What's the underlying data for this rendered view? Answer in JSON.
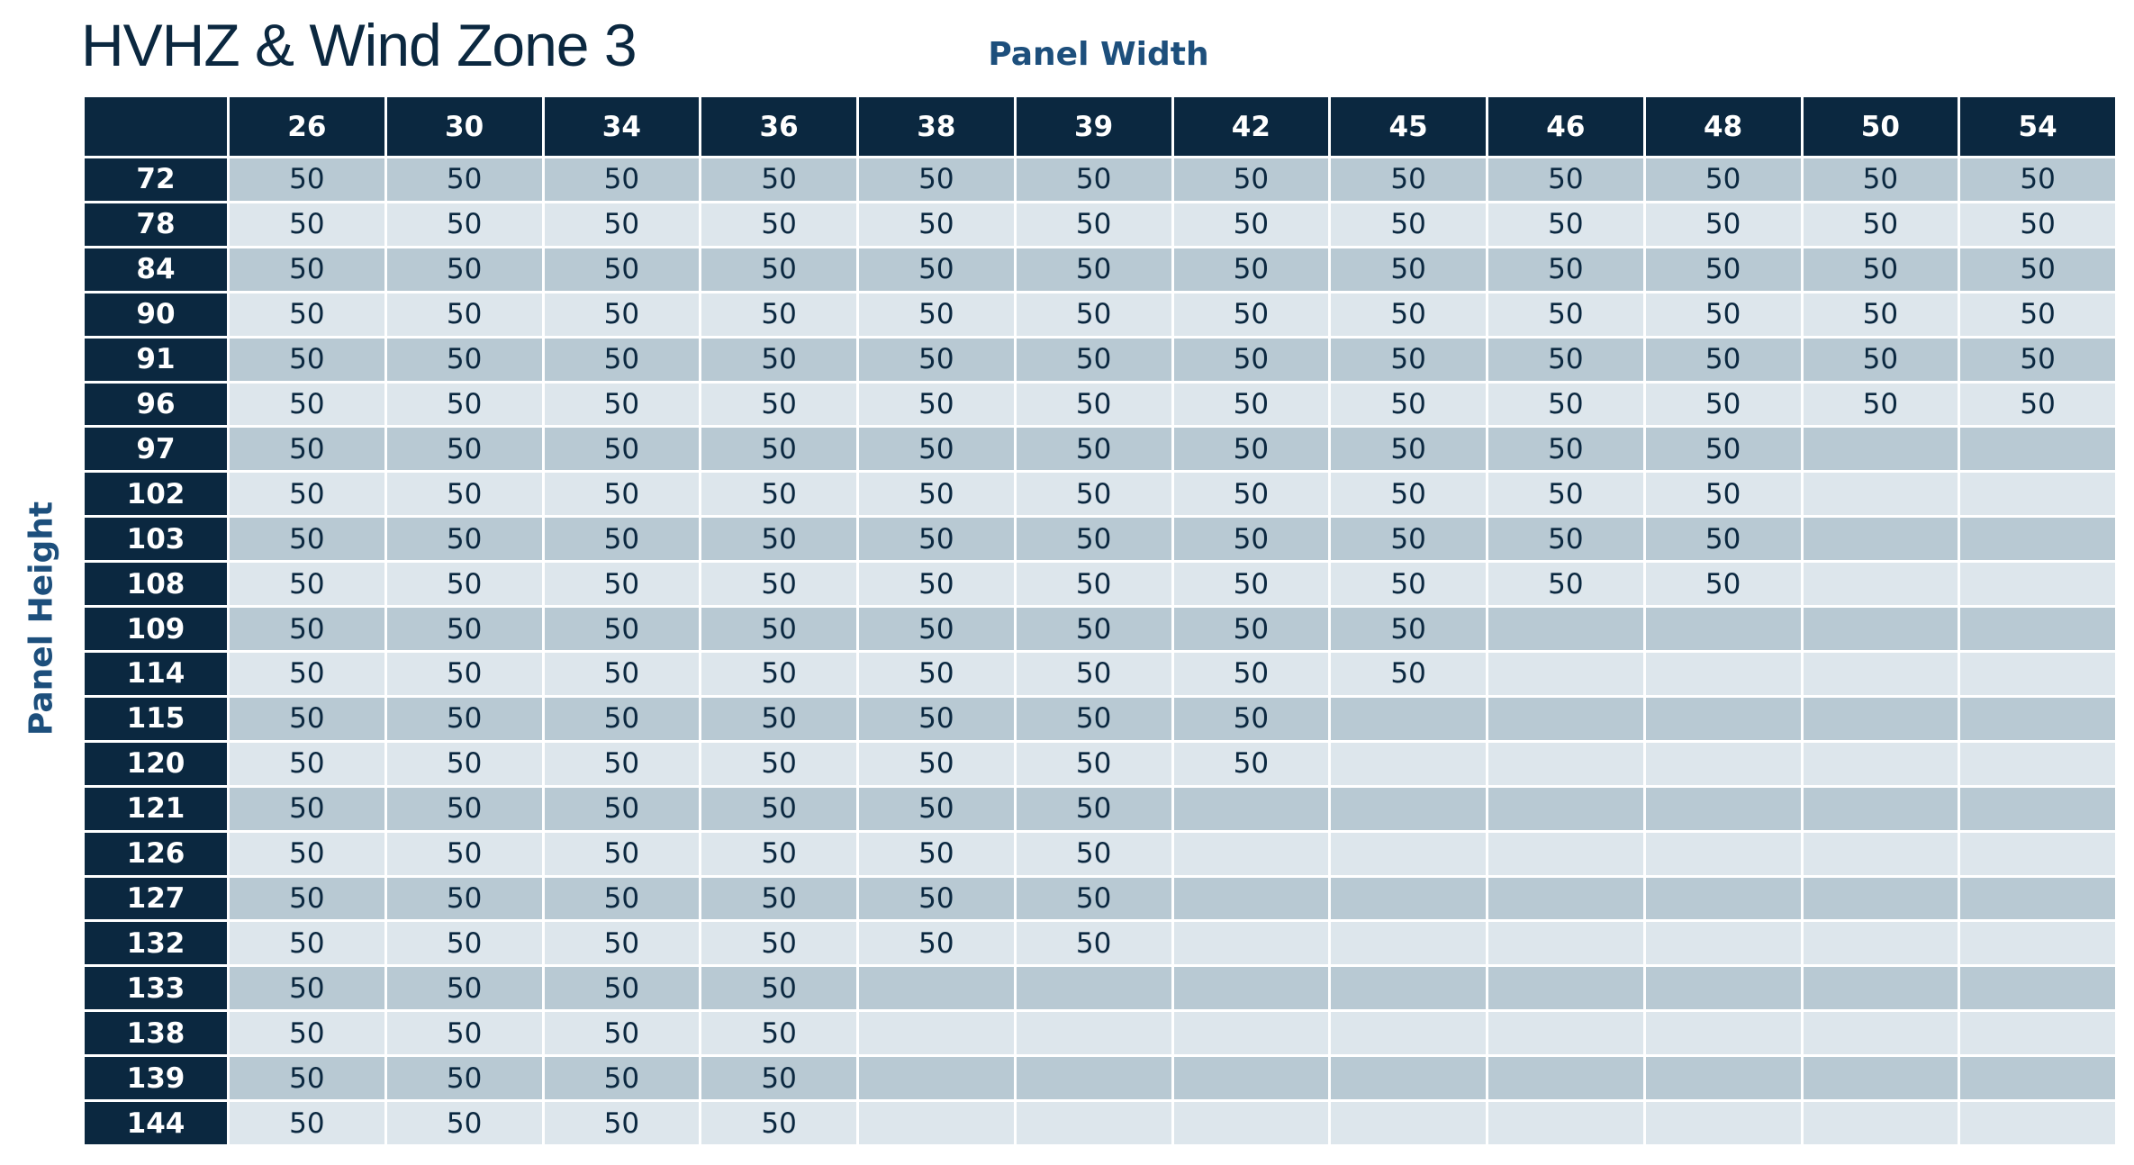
{
  "header": {
    "title": "HVHZ & Wind Zone 3"
  },
  "table": {
    "column_label": "Panel Width",
    "row_label": "Panel Height",
    "columns": [
      26,
      30,
      34,
      36,
      38,
      39,
      42,
      45,
      46,
      48,
      50,
      54
    ],
    "rows": [
      {
        "height": 72,
        "values": [
          50,
          50,
          50,
          50,
          50,
          50,
          50,
          50,
          50,
          50,
          50,
          50
        ]
      },
      {
        "height": 78,
        "values": [
          50,
          50,
          50,
          50,
          50,
          50,
          50,
          50,
          50,
          50,
          50,
          50
        ]
      },
      {
        "height": 84,
        "values": [
          50,
          50,
          50,
          50,
          50,
          50,
          50,
          50,
          50,
          50,
          50,
          50
        ]
      },
      {
        "height": 90,
        "values": [
          50,
          50,
          50,
          50,
          50,
          50,
          50,
          50,
          50,
          50,
          50,
          50
        ]
      },
      {
        "height": 91,
        "values": [
          50,
          50,
          50,
          50,
          50,
          50,
          50,
          50,
          50,
          50,
          50,
          50
        ]
      },
      {
        "height": 96,
        "values": [
          50,
          50,
          50,
          50,
          50,
          50,
          50,
          50,
          50,
          50,
          50,
          50
        ]
      },
      {
        "height": 97,
        "values": [
          50,
          50,
          50,
          50,
          50,
          50,
          50,
          50,
          50,
          50
        ]
      },
      {
        "height": 102,
        "values": [
          50,
          50,
          50,
          50,
          50,
          50,
          50,
          50,
          50,
          50
        ]
      },
      {
        "height": 103,
        "values": [
          50,
          50,
          50,
          50,
          50,
          50,
          50,
          50,
          50,
          50
        ]
      },
      {
        "height": 108,
        "values": [
          50,
          50,
          50,
          50,
          50,
          50,
          50,
          50,
          50,
          50
        ]
      },
      {
        "height": 109,
        "values": [
          50,
          50,
          50,
          50,
          50,
          50,
          50,
          50
        ]
      },
      {
        "height": 114,
        "values": [
          50,
          50,
          50,
          50,
          50,
          50,
          50,
          50
        ]
      },
      {
        "height": 115,
        "values": [
          50,
          50,
          50,
          50,
          50,
          50,
          50
        ]
      },
      {
        "height": 120,
        "values": [
          50,
          50,
          50,
          50,
          50,
          50,
          50
        ]
      },
      {
        "height": 121,
        "values": [
          50,
          50,
          50,
          50,
          50,
          50
        ]
      },
      {
        "height": 126,
        "values": [
          50,
          50,
          50,
          50,
          50,
          50
        ]
      },
      {
        "height": 127,
        "values": [
          50,
          50,
          50,
          50,
          50,
          50
        ]
      },
      {
        "height": 132,
        "values": [
          50,
          50,
          50,
          50,
          50,
          50
        ]
      },
      {
        "height": 133,
        "values": [
          50,
          50,
          50,
          50
        ]
      },
      {
        "height": 138,
        "values": [
          50,
          50,
          50,
          50
        ]
      },
      {
        "height": 139,
        "values": [
          50,
          50,
          50,
          50
        ]
      },
      {
        "height": 144,
        "values": [
          50,
          50,
          50,
          50
        ]
      }
    ]
  }
}
